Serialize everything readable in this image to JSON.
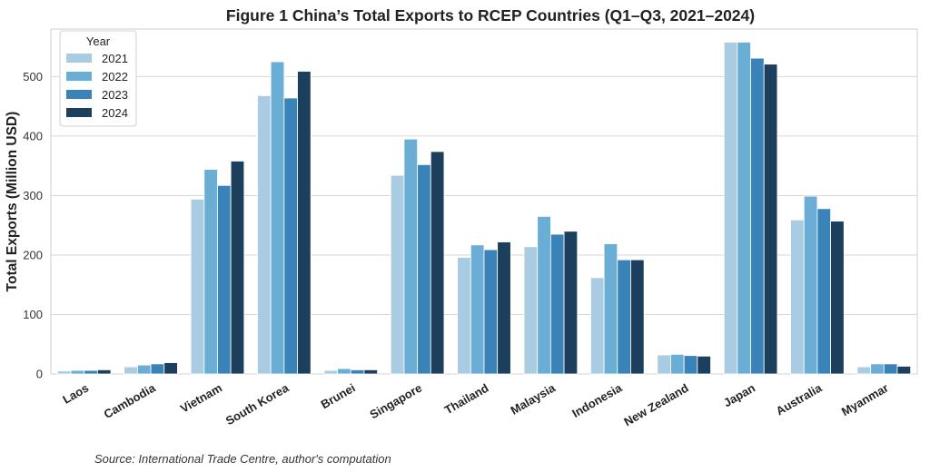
{
  "chart_data": {
    "type": "bar",
    "title": "Figure 1  China’s Total Exports to RCEP Countries (Q1–Q3, 2021–2024)",
    "ylabel": "Total Exports (Million USD)",
    "xlabel": "",
    "ylim": [
      0,
      580
    ],
    "yticks": [
      0,
      100,
      200,
      300,
      400,
      500
    ],
    "grid": true,
    "legend_title": "Year",
    "legend_position": "top-left",
    "source": "Source: International Trade Centre, author's computation",
    "categories": [
      "Laos",
      "Cambodia",
      "Vietnam",
      "South Korea",
      "Brunei",
      "Singapore",
      "Thailand",
      "Malaysia",
      "Indonesia",
      "New Zealand",
      "Japan",
      "Australia",
      "Myanmar"
    ],
    "series": [
      {
        "name": "2021",
        "color": "#a9cce3",
        "values": [
          5,
          12,
          294,
          468,
          6,
          334,
          196,
          214,
          162,
          32,
          558,
          259,
          12
        ]
      },
      {
        "name": "2022",
        "color": "#6aaed6",
        "values": [
          6,
          15,
          344,
          525,
          9,
          395,
          217,
          265,
          219,
          33,
          558,
          299,
          17
        ]
      },
      {
        "name": "2023",
        "color": "#3a83b9",
        "values": [
          6,
          17,
          317,
          464,
          7,
          352,
          209,
          235,
          192,
          31,
          531,
          278,
          17
        ]
      },
      {
        "name": "2024",
        "color": "#1c3f5e",
        "values": [
          7,
          19,
          358,
          509,
          7,
          374,
          222,
          240,
          192,
          30,
          521,
          257,
          13
        ]
      }
    ]
  }
}
